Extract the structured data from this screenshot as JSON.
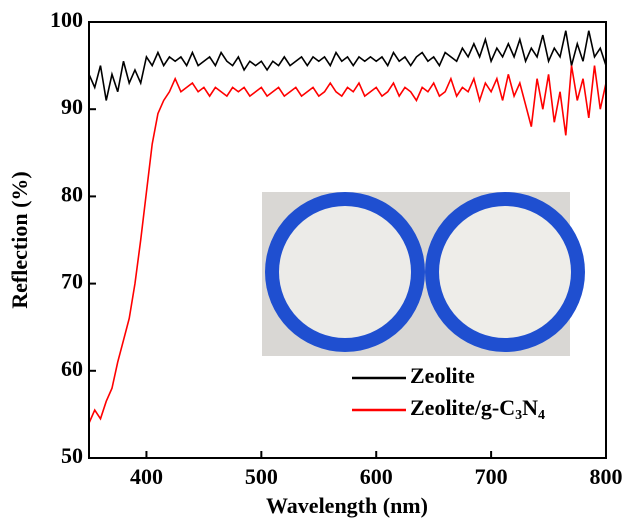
{
  "chart_data": {
    "type": "line",
    "x_label": "Wavelength (nm)",
    "y_label": "Reflection (%)",
    "xlim": [
      350,
      800
    ],
    "ylim": [
      50,
      100
    ],
    "xticks": [
      400,
      500,
      600,
      700,
      800
    ],
    "yticks": [
      50,
      60,
      70,
      80,
      90,
      100
    ],
    "legend": "lower right",
    "x": [
      350,
      355,
      360,
      365,
      370,
      375,
      380,
      385,
      390,
      395,
      400,
      405,
      410,
      415,
      420,
      425,
      430,
      435,
      440,
      445,
      450,
      455,
      460,
      465,
      470,
      475,
      480,
      485,
      490,
      495,
      500,
      505,
      510,
      515,
      520,
      525,
      530,
      535,
      540,
      545,
      550,
      555,
      560,
      565,
      570,
      575,
      580,
      585,
      590,
      595,
      600,
      605,
      610,
      615,
      620,
      625,
      630,
      635,
      640,
      645,
      650,
      655,
      660,
      665,
      670,
      675,
      680,
      685,
      690,
      695,
      700,
      705,
      710,
      715,
      720,
      725,
      730,
      735,
      740,
      745,
      750,
      755,
      760,
      765,
      770,
      775,
      780,
      785,
      790,
      795,
      800
    ],
    "series": [
      {
        "name": "Zeolite",
        "color": "#000000",
        "values": [
          94,
          92.5,
          95,
          91,
          94,
          92,
          95.5,
          93,
          94.5,
          93,
          96,
          95,
          96.5,
          95,
          96,
          95.5,
          96,
          95,
          96.5,
          95,
          95.5,
          96,
          95,
          96.5,
          95.5,
          95,
          96,
          94.5,
          95.5,
          95,
          95.5,
          94.5,
          95.5,
          95,
          96,
          95,
          95.5,
          96,
          95,
          96,
          95.5,
          96,
          95,
          96.5,
          95.5,
          96,
          95,
          96,
          95.5,
          96,
          95.5,
          96,
          95,
          96.5,
          95.5,
          96,
          95,
          96,
          96.5,
          95.5,
          96,
          95,
          96.5,
          96,
          95.5,
          97,
          96,
          97.5,
          96,
          98,
          95.5,
          97,
          96,
          97.5,
          96,
          98,
          95.5,
          97,
          96,
          98.5,
          95.5,
          97,
          96,
          99,
          95,
          97.5,
          95.5,
          99,
          96,
          97,
          95
        ]
      },
      {
        "name": "Zeolite/g-C3N4",
        "color": "#ff0000",
        "values": [
          54,
          55.5,
          54.5,
          56.5,
          58,
          61,
          63.5,
          66,
          70,
          75,
          80.5,
          86,
          89.5,
          91,
          92,
          93.5,
          92,
          92.5,
          93,
          92,
          92.5,
          91.5,
          92.5,
          92,
          91.5,
          92.5,
          92,
          92.5,
          91.5,
          92,
          92.5,
          91.5,
          92,
          92.5,
          91.5,
          92,
          92.5,
          91.5,
          92,
          92.5,
          91.5,
          92,
          93,
          92,
          91.5,
          92.5,
          92,
          93,
          91.5,
          92,
          92.5,
          91.5,
          92,
          93,
          91.5,
          92.5,
          92,
          91,
          92.5,
          92,
          93,
          91.5,
          92,
          93.5,
          91.5,
          92.5,
          92,
          93.5,
          91,
          93,
          92,
          93.5,
          91,
          94,
          91.5,
          93,
          90.5,
          88,
          93.5,
          90,
          94,
          88.5,
          92,
          87,
          95,
          91,
          93.5,
          89,
          95,
          90,
          93
        ]
      }
    ]
  }
}
